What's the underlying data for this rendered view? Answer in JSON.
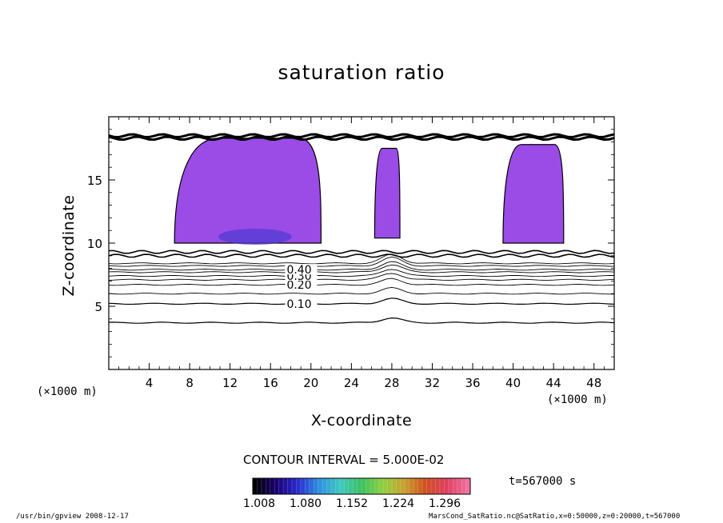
{
  "chart_data": {
    "type": "heatmap",
    "title": "saturation ratio",
    "xlabel": "X-coordinate",
    "ylabel": "Z-coordinate",
    "x_unit_left": "(×1000 m)",
    "x_unit_right": "(×1000 m)",
    "xlim": [
      0,
      50
    ],
    "ylim": [
      0,
      20
    ],
    "x_ticks": [
      4,
      8,
      12,
      16,
      20,
      24,
      28,
      32,
      36,
      40,
      44,
      48
    ],
    "y_ticks": [
      5,
      10,
      15
    ],
    "contour_interval_label": "CONTOUR INTERVAL = 5.000E-02",
    "contour_labels": [
      {
        "value": "0.10",
        "x": 17.6,
        "z": 5.2
      },
      {
        "value": "0.20",
        "x": 17.6,
        "z": 6.7
      },
      {
        "value": "0.30",
        "x": 17.6,
        "z": 7.4
      },
      {
        "value": "0.40",
        "x": 17.6,
        "z": 7.9
      }
    ],
    "contour_lines": [
      {
        "level": 0.05,
        "z": 3.7
      },
      {
        "level": 0.1,
        "z": 5.2
      },
      {
        "level": 0.15,
        "z": 6.0
      },
      {
        "level": 0.2,
        "z": 6.7
      },
      {
        "level": 0.25,
        "z": 7.1
      },
      {
        "level": 0.3,
        "z": 7.4
      },
      {
        "level": 0.35,
        "z": 7.7
      },
      {
        "level": 0.4,
        "z": 7.9
      },
      {
        "level": 0.45,
        "z": 8.2
      },
      {
        "level": 0.5,
        "z": 8.4
      }
    ],
    "filled_regions": [
      {
        "name": "supersaturated-west",
        "x0": 6.5,
        "x1": 21.0,
        "z0": 10.0,
        "z1": 18.3
      },
      {
        "name": "supersaturated-center",
        "x0": 26.3,
        "x1": 28.8,
        "z0": 10.4,
        "z1": 17.5
      },
      {
        "name": "supersaturated-east",
        "x0": 39.0,
        "x1": 45.0,
        "z0": 10.0,
        "z1": 17.8
      }
    ],
    "colorbar": {
      "ticks": [
        "1.008",
        "1.080",
        "1.152",
        "1.224",
        "1.296"
      ],
      "colors": [
        "#000000",
        "#1a0070",
        "#2a2ad0",
        "#2f8fe0",
        "#40c8c0",
        "#3cc060",
        "#90d040",
        "#c8a030",
        "#d05020",
        "#e04060",
        "#f070a0"
      ]
    },
    "time_label": "t=567000 s"
  },
  "footer": {
    "left": "/usr/bin/gpview   2008-12-17",
    "right": "MarsCond_SatRatio.nc@SatRatio,x=0:50000,z=0:20000,t=567000"
  }
}
